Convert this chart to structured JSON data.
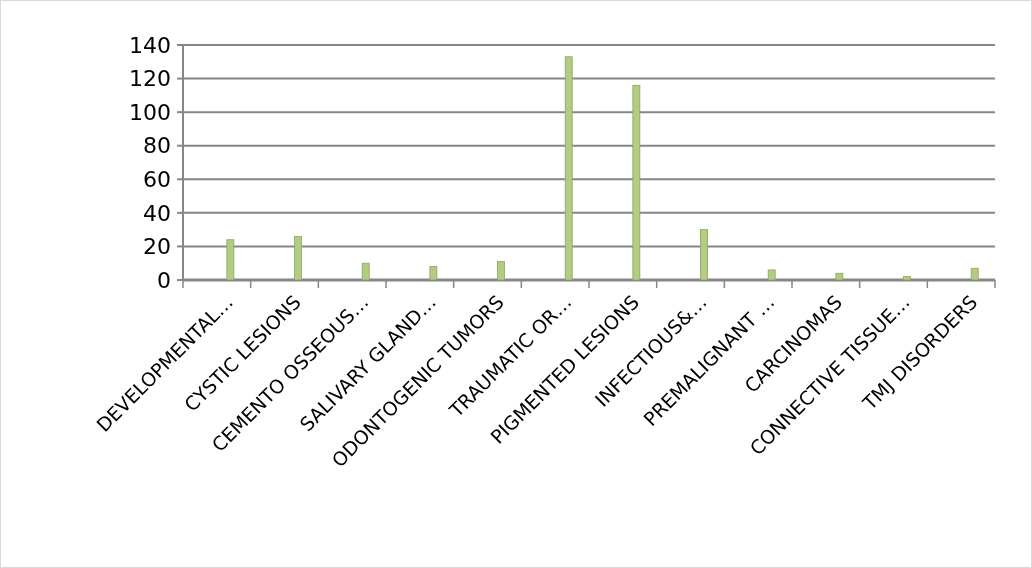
{
  "chart_data": {
    "type": "bar",
    "categories": [
      "DEVELOPMENTAL…",
      "CYSTIC LESIONS",
      "CEMENTO OSSEOUS…",
      "SALIVARY GLAND…",
      "ODONTOGENIC TUMORS",
      "TRAUMATIC OR…",
      "PIGMENTED LESIONS",
      "INFECTIOUS&…",
      "PREMALIGNANT …",
      "CARCINOMAS",
      "CONNECTIVE TISSUE…",
      "TMJ DISORDERS"
    ],
    "values": [
      24,
      26,
      10,
      8,
      11,
      133,
      116,
      30,
      6,
      4,
      2,
      7
    ],
    "color": "#b3cb83",
    "ylim": [
      0,
      140
    ],
    "yticks": [
      0,
      20,
      40,
      60,
      80,
      100,
      120,
      140
    ],
    "grid": "y"
  }
}
